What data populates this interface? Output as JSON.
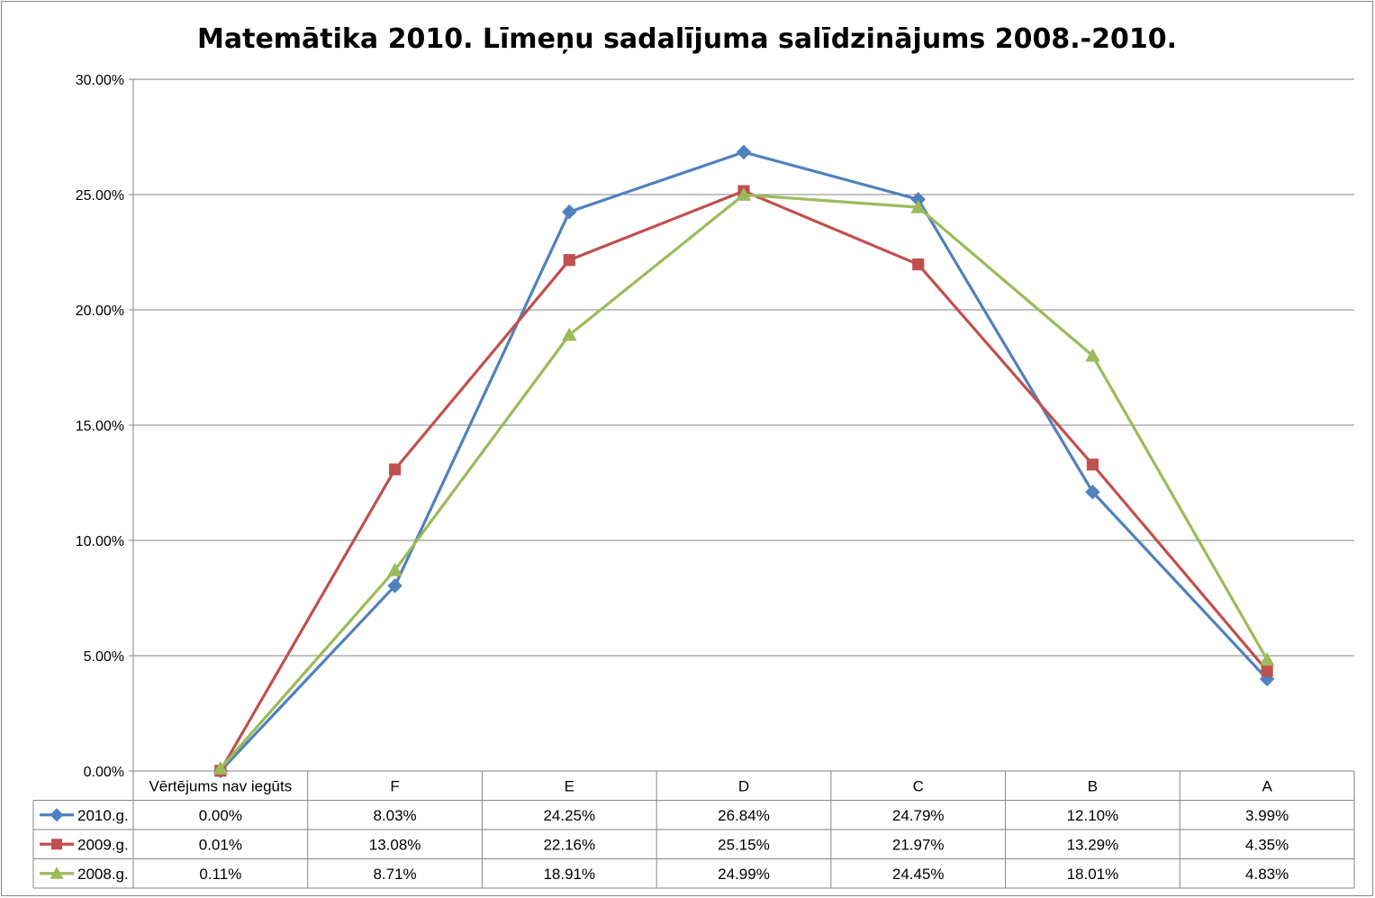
{
  "chart_data": {
    "type": "line",
    "title": "Matemātika 2010. Līmeņu sadalījuma salīdzinājums 2008.-2010.",
    "categories": [
      "Vērtējums nav iegūts",
      "F",
      "E",
      "D",
      "C",
      "B",
      "A"
    ],
    "ylim": [
      0,
      30
    ],
    "yticks": [
      "0.00%",
      "5.00%",
      "10.00%",
      "15.00%",
      "20.00%",
      "25.00%",
      "30.00%"
    ],
    "grid": true,
    "legend": "data-table",
    "series": [
      {
        "name": "2010.g.",
        "color": "#4F81BD",
        "marker": "diamond",
        "values": [
          0.0,
          8.03,
          24.25,
          26.84,
          24.79,
          12.1,
          3.99
        ],
        "labels": [
          "0.00%",
          "8.03%",
          "24.25%",
          "26.84%",
          "24.79%",
          "12.10%",
          "3.99%"
        ]
      },
      {
        "name": "2009.g.",
        "color": "#C0504D",
        "marker": "square",
        "values": [
          0.01,
          13.08,
          22.16,
          25.15,
          21.97,
          13.29,
          4.35
        ],
        "labels": [
          "0.01%",
          "13.08%",
          "22.16%",
          "25.15%",
          "21.97%",
          "13.29%",
          "4.35%"
        ]
      },
      {
        "name": "2008.g.",
        "color": "#9BBB59",
        "marker": "triangle",
        "values": [
          0.11,
          8.71,
          18.91,
          24.99,
          24.45,
          18.01,
          4.83
        ],
        "labels": [
          "0.11%",
          "8.71%",
          "18.91%",
          "24.99%",
          "24.45%",
          "18.01%",
          "4.83%"
        ]
      }
    ]
  }
}
